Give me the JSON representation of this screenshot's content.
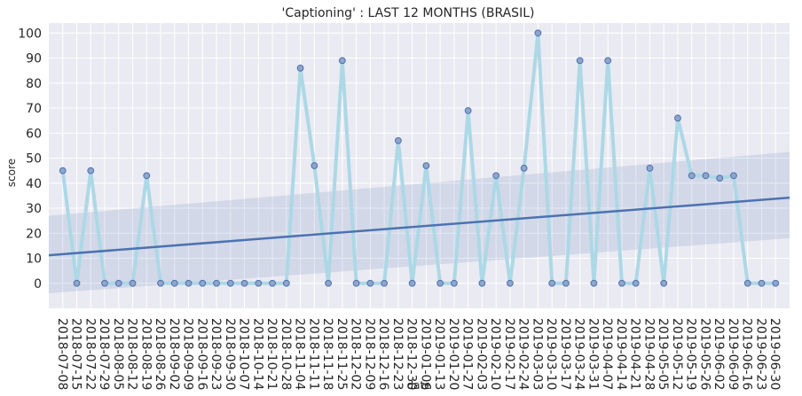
{
  "chart_data": {
    "type": "line",
    "title": "'Captioning' : LAST 12 MONTHS (BRASIL)",
    "xlabel": "date",
    "ylabel": "score",
    "ylim": [
      -10,
      104
    ],
    "yticks": [
      0,
      10,
      20,
      30,
      40,
      50,
      60,
      70,
      80,
      90,
      100
    ],
    "grid": true,
    "x": [
      "2018-07-08",
      "2018-07-15",
      "2018-07-22",
      "2018-07-29",
      "2018-08-05",
      "2018-08-12",
      "2018-08-19",
      "2018-08-26",
      "2018-09-02",
      "2018-09-09",
      "2018-09-16",
      "2018-09-23",
      "2018-09-30",
      "2018-10-07",
      "2018-10-14",
      "2018-10-21",
      "2018-10-28",
      "2018-11-04",
      "2018-11-11",
      "2018-11-18",
      "2018-11-25",
      "2018-12-02",
      "2018-12-09",
      "2018-12-16",
      "2018-12-23",
      "2018-12-30",
      "2019-01-06",
      "2019-01-13",
      "2019-01-20",
      "2019-01-27",
      "2019-02-03",
      "2019-02-10",
      "2019-02-17",
      "2019-02-24",
      "2019-03-03",
      "2019-03-10",
      "2019-03-17",
      "2019-03-24",
      "2019-03-31",
      "2019-04-07",
      "2019-04-14",
      "2019-04-21",
      "2019-04-28",
      "2019-05-05",
      "2019-05-12",
      "2019-05-19",
      "2019-05-26",
      "2019-06-02",
      "2019-06-09",
      "2019-06-16",
      "2019-06-23",
      "2019-06-30"
    ],
    "series": [
      {
        "values": [
          45,
          0,
          45,
          0,
          0,
          0,
          43,
          0,
          0,
          0,
          0,
          0,
          0,
          0,
          0,
          0,
          0,
          86,
          47,
          0,
          89,
          0,
          0,
          0,
          57,
          0,
          47,
          0,
          0,
          69,
          0,
          43,
          0,
          46,
          100,
          0,
          0,
          89,
          0,
          89,
          0,
          0,
          46,
          0,
          66,
          43,
          43,
          42,
          43,
          0,
          0,
          0
        ],
        "color": "#add8e6"
      }
    ],
    "regression": {
      "line_color": "#4c72b0",
      "band_color": "#4c72b0",
      "start": {
        "x": "2018-07-01",
        "y": 11.2,
        "lower": -4,
        "upper": 27
      },
      "end": {
        "x": "2019-07-07",
        "y": 34.2,
        "lower": 18,
        "upper": 52.5
      }
    },
    "colors": {
      "background": "#eaeaf2",
      "grid": "#ffffff",
      "marker_edge": "#4c72b0",
      "marker_fill": "#8fa5c9"
    }
  }
}
